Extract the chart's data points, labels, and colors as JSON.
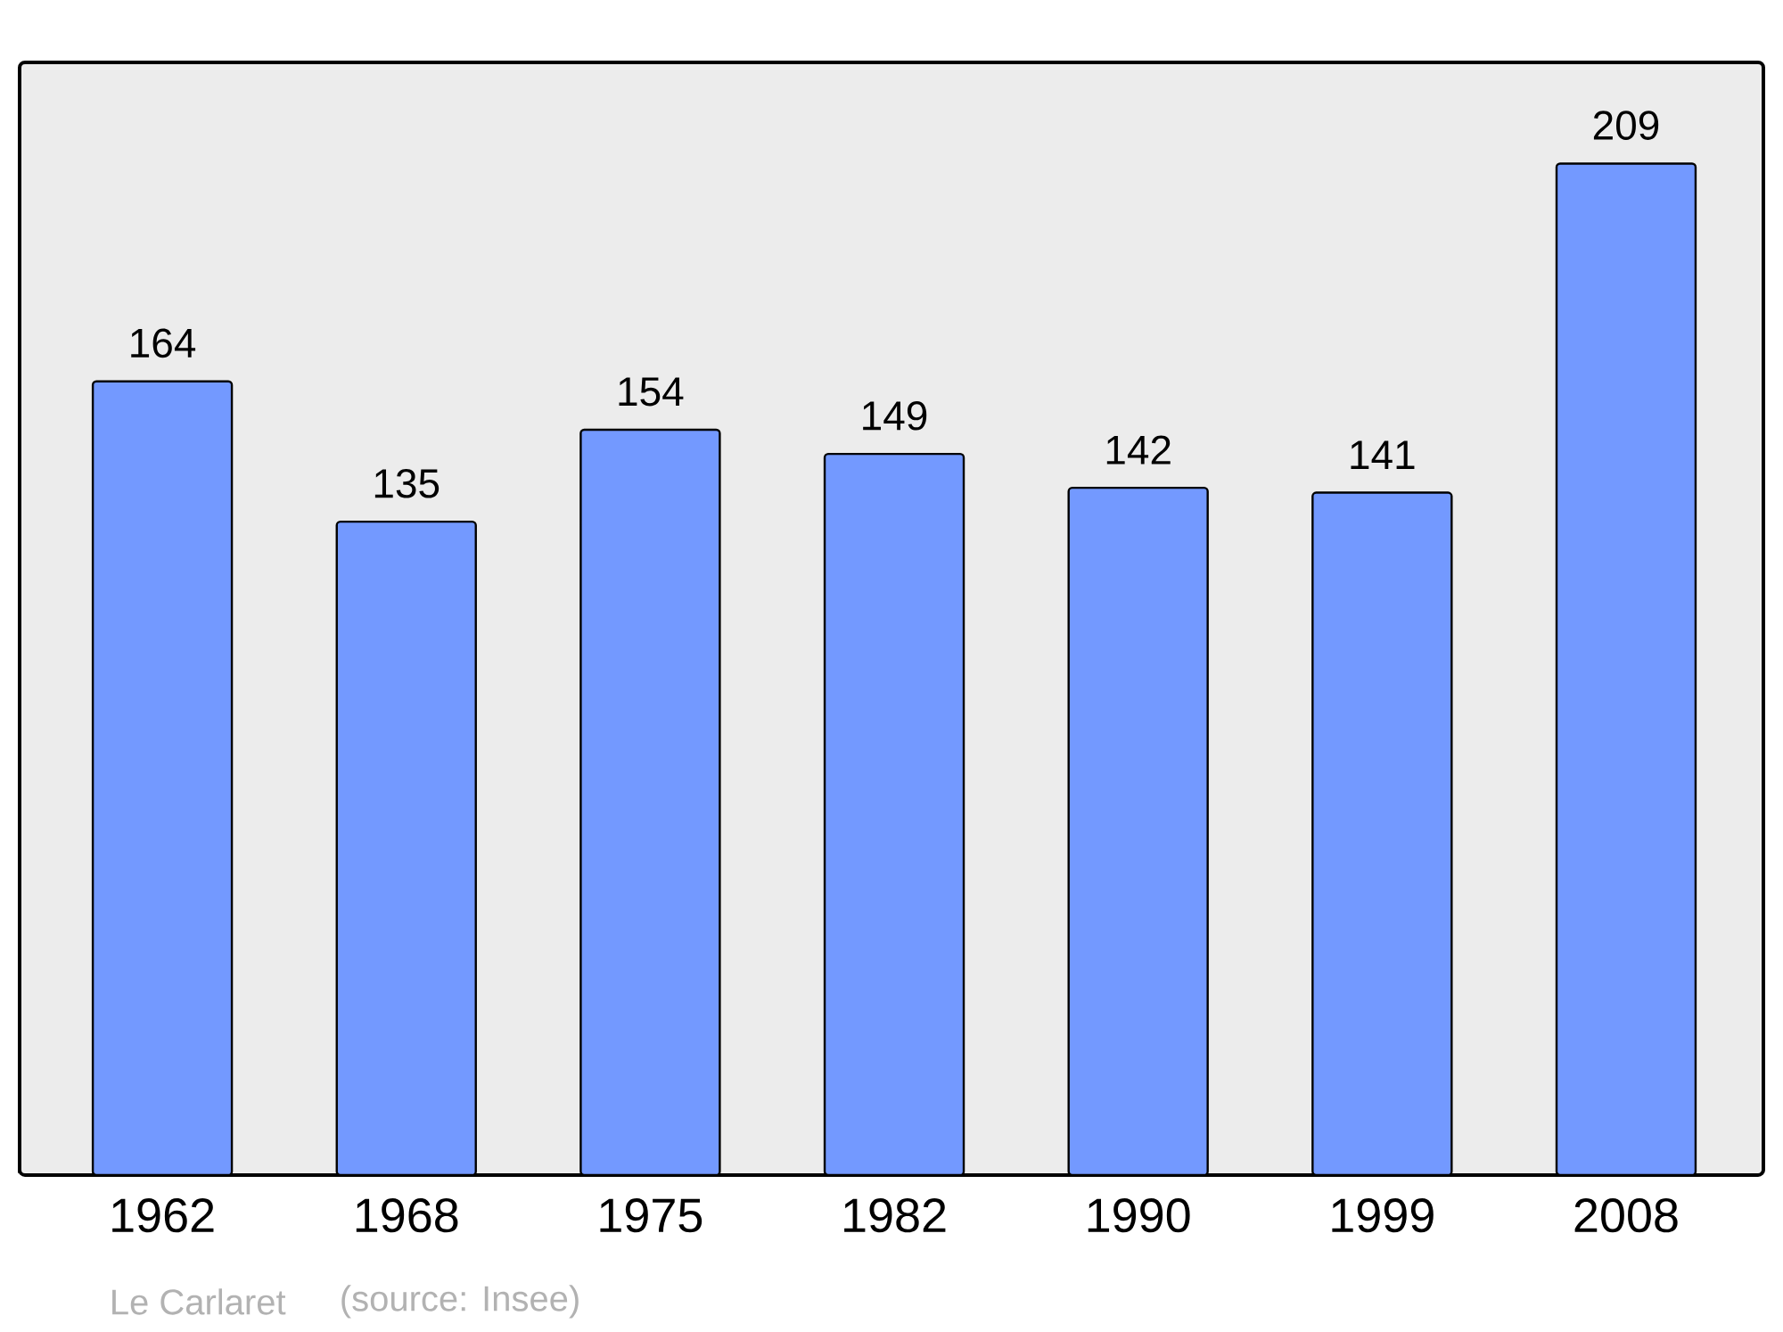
{
  "chart_data": {
    "type": "bar",
    "categories": [
      "1962",
      "1968",
      "1975",
      "1982",
      "1990",
      "1999",
      "2008"
    ],
    "values": [
      164,
      135,
      154,
      149,
      142,
      141,
      209
    ],
    "color": "#7399ff",
    "data_labels": true,
    "annotations": [
      "Le Carlaret",
      "(source: Insee)"
    ]
  }
}
